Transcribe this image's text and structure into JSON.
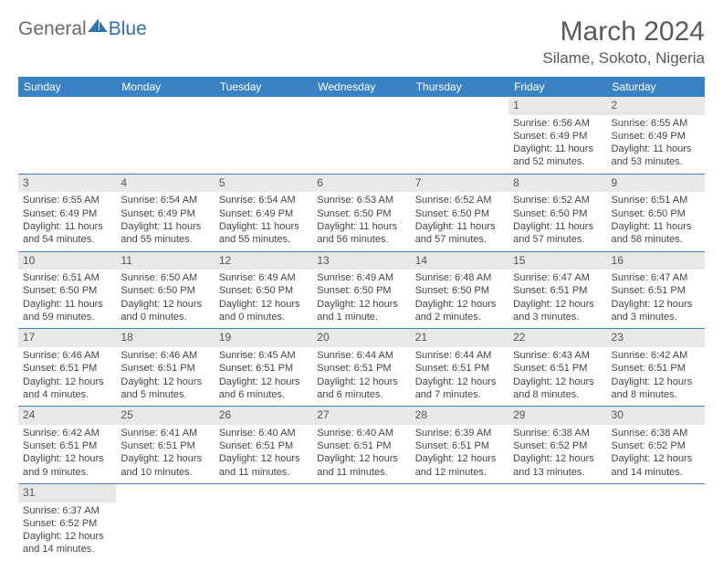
{
  "logo": {
    "part1": "General",
    "part2": "Blue"
  },
  "title": "March 2024",
  "location": "Silame, Sokoto, Nigeria",
  "colors": {
    "header_bg": "#3b82c4",
    "daynum_bg": "#e8e8e8",
    "row_border": "#3b82c4",
    "text": "#444"
  },
  "weekdays": [
    "Sunday",
    "Monday",
    "Tuesday",
    "Wednesday",
    "Thursday",
    "Friday",
    "Saturday"
  ],
  "weeks": [
    [
      null,
      null,
      null,
      null,
      null,
      {
        "d": "1",
        "sr": "Sunrise: 6:56 AM",
        "ss": "Sunset: 6:49 PM",
        "dl1": "Daylight: 11 hours",
        "dl2": "and 52 minutes."
      },
      {
        "d": "2",
        "sr": "Sunrise: 6:55 AM",
        "ss": "Sunset: 6:49 PM",
        "dl1": "Daylight: 11 hours",
        "dl2": "and 53 minutes."
      }
    ],
    [
      {
        "d": "3",
        "sr": "Sunrise: 6:55 AM",
        "ss": "Sunset: 6:49 PM",
        "dl1": "Daylight: 11 hours",
        "dl2": "and 54 minutes."
      },
      {
        "d": "4",
        "sr": "Sunrise: 6:54 AM",
        "ss": "Sunset: 6:49 PM",
        "dl1": "Daylight: 11 hours",
        "dl2": "and 55 minutes."
      },
      {
        "d": "5",
        "sr": "Sunrise: 6:54 AM",
        "ss": "Sunset: 6:49 PM",
        "dl1": "Daylight: 11 hours",
        "dl2": "and 55 minutes."
      },
      {
        "d": "6",
        "sr": "Sunrise: 6:53 AM",
        "ss": "Sunset: 6:50 PM",
        "dl1": "Daylight: 11 hours",
        "dl2": "and 56 minutes."
      },
      {
        "d": "7",
        "sr": "Sunrise: 6:52 AM",
        "ss": "Sunset: 6:50 PM",
        "dl1": "Daylight: 11 hours",
        "dl2": "and 57 minutes."
      },
      {
        "d": "8",
        "sr": "Sunrise: 6:52 AM",
        "ss": "Sunset: 6:50 PM",
        "dl1": "Daylight: 11 hours",
        "dl2": "and 57 minutes."
      },
      {
        "d": "9",
        "sr": "Sunrise: 6:51 AM",
        "ss": "Sunset: 6:50 PM",
        "dl1": "Daylight: 11 hours",
        "dl2": "and 58 minutes."
      }
    ],
    [
      {
        "d": "10",
        "sr": "Sunrise: 6:51 AM",
        "ss": "Sunset: 6:50 PM",
        "dl1": "Daylight: 11 hours",
        "dl2": "and 59 minutes."
      },
      {
        "d": "11",
        "sr": "Sunrise: 6:50 AM",
        "ss": "Sunset: 6:50 PM",
        "dl1": "Daylight: 12 hours",
        "dl2": "and 0 minutes."
      },
      {
        "d": "12",
        "sr": "Sunrise: 6:49 AM",
        "ss": "Sunset: 6:50 PM",
        "dl1": "Daylight: 12 hours",
        "dl2": "and 0 minutes."
      },
      {
        "d": "13",
        "sr": "Sunrise: 6:49 AM",
        "ss": "Sunset: 6:50 PM",
        "dl1": "Daylight: 12 hours",
        "dl2": "and 1 minute."
      },
      {
        "d": "14",
        "sr": "Sunrise: 6:48 AM",
        "ss": "Sunset: 6:50 PM",
        "dl1": "Daylight: 12 hours",
        "dl2": "and 2 minutes."
      },
      {
        "d": "15",
        "sr": "Sunrise: 6:47 AM",
        "ss": "Sunset: 6:51 PM",
        "dl1": "Daylight: 12 hours",
        "dl2": "and 3 minutes."
      },
      {
        "d": "16",
        "sr": "Sunrise: 6:47 AM",
        "ss": "Sunset: 6:51 PM",
        "dl1": "Daylight: 12 hours",
        "dl2": "and 3 minutes."
      }
    ],
    [
      {
        "d": "17",
        "sr": "Sunrise: 6:46 AM",
        "ss": "Sunset: 6:51 PM",
        "dl1": "Daylight: 12 hours",
        "dl2": "and 4 minutes."
      },
      {
        "d": "18",
        "sr": "Sunrise: 6:46 AM",
        "ss": "Sunset: 6:51 PM",
        "dl1": "Daylight: 12 hours",
        "dl2": "and 5 minutes."
      },
      {
        "d": "19",
        "sr": "Sunrise: 6:45 AM",
        "ss": "Sunset: 6:51 PM",
        "dl1": "Daylight: 12 hours",
        "dl2": "and 6 minutes."
      },
      {
        "d": "20",
        "sr": "Sunrise: 6:44 AM",
        "ss": "Sunset: 6:51 PM",
        "dl1": "Daylight: 12 hours",
        "dl2": "and 6 minutes."
      },
      {
        "d": "21",
        "sr": "Sunrise: 6:44 AM",
        "ss": "Sunset: 6:51 PM",
        "dl1": "Daylight: 12 hours",
        "dl2": "and 7 minutes."
      },
      {
        "d": "22",
        "sr": "Sunrise: 6:43 AM",
        "ss": "Sunset: 6:51 PM",
        "dl1": "Daylight: 12 hours",
        "dl2": "and 8 minutes."
      },
      {
        "d": "23",
        "sr": "Sunrise: 6:42 AM",
        "ss": "Sunset: 6:51 PM",
        "dl1": "Daylight: 12 hours",
        "dl2": "and 8 minutes."
      }
    ],
    [
      {
        "d": "24",
        "sr": "Sunrise: 6:42 AM",
        "ss": "Sunset: 6:51 PM",
        "dl1": "Daylight: 12 hours",
        "dl2": "and 9 minutes."
      },
      {
        "d": "25",
        "sr": "Sunrise: 6:41 AM",
        "ss": "Sunset: 6:51 PM",
        "dl1": "Daylight: 12 hours",
        "dl2": "and 10 minutes."
      },
      {
        "d": "26",
        "sr": "Sunrise: 6:40 AM",
        "ss": "Sunset: 6:51 PM",
        "dl1": "Daylight: 12 hours",
        "dl2": "and 11 minutes."
      },
      {
        "d": "27",
        "sr": "Sunrise: 6:40 AM",
        "ss": "Sunset: 6:51 PM",
        "dl1": "Daylight: 12 hours",
        "dl2": "and 11 minutes."
      },
      {
        "d": "28",
        "sr": "Sunrise: 6:39 AM",
        "ss": "Sunset: 6:51 PM",
        "dl1": "Daylight: 12 hours",
        "dl2": "and 12 minutes."
      },
      {
        "d": "29",
        "sr": "Sunrise: 6:38 AM",
        "ss": "Sunset: 6:52 PM",
        "dl1": "Daylight: 12 hours",
        "dl2": "and 13 minutes."
      },
      {
        "d": "30",
        "sr": "Sunrise: 6:38 AM",
        "ss": "Sunset: 6:52 PM",
        "dl1": "Daylight: 12 hours",
        "dl2": "and 14 minutes."
      }
    ],
    [
      {
        "d": "31",
        "sr": "Sunrise: 6:37 AM",
        "ss": "Sunset: 6:52 PM",
        "dl1": "Daylight: 12 hours",
        "dl2": "and 14 minutes."
      },
      null,
      null,
      null,
      null,
      null,
      null
    ]
  ]
}
